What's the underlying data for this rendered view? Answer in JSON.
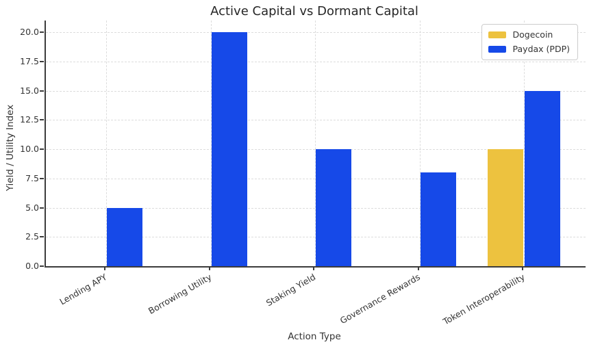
{
  "chart_data": {
    "type": "bar",
    "title": "Active Capital vs Dormant Capital",
    "xlabel": "Action Type",
    "ylabel": "Yield / Utility Index",
    "categories": [
      "Lending APY",
      "Borrowing Utility",
      "Staking Yield",
      "Governance Rewards",
      "Token Interoperability"
    ],
    "series": [
      {
        "name": "Dogecoin",
        "color": "#EDC23F",
        "values": [
          0,
          0,
          0,
          0,
          10
        ]
      },
      {
        "name": "Paydax (PDP)",
        "color": "#1649E8",
        "values": [
          5,
          20,
          10,
          8,
          15
        ]
      }
    ],
    "ylim": [
      0,
      21
    ],
    "yticks": [
      0.0,
      2.5,
      5.0,
      7.5,
      10.0,
      12.5,
      15.0,
      17.5,
      20.0
    ],
    "ytick_labels": [
      "0.0",
      "2.5",
      "5.0",
      "7.5",
      "10.0",
      "12.5",
      "15.0",
      "17.5",
      "20.0"
    ],
    "grid": true,
    "grid_style": "dashed",
    "legend_position": "upper right",
    "colors": {
      "spine": "#3b3b3b",
      "gridline": "#dcdcdc",
      "text": "#333333"
    }
  }
}
